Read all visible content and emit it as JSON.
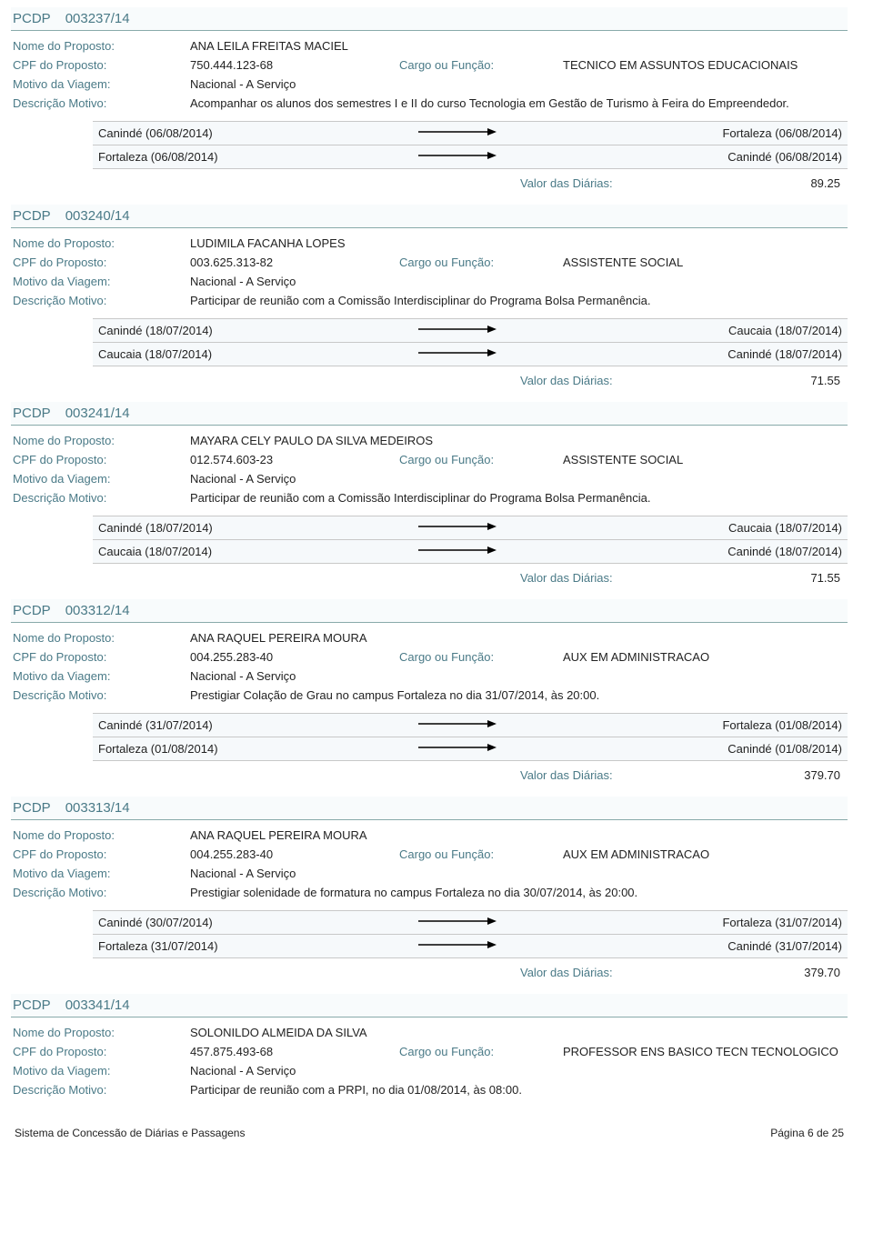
{
  "labels": {
    "pcdp": "PCDP",
    "nome": "Nome do Proposto:",
    "cpf": "CPF do Proposto:",
    "cargo": "Cargo ou Função:",
    "motivo": "Motivo da Viagem:",
    "descricao": "Descrição Motivo:",
    "valor": "Valor das Diárias:"
  },
  "records": [
    {
      "pcdp": "003237/14",
      "nome": "ANA LEILA FREITAS MACIEL",
      "cpf": "750.444.123-68",
      "cargo": "TECNICO EM ASSUNTOS EDUCACIONAIS",
      "motivo": "Nacional - A Serviço",
      "descricao": "Acompanhar os alunos dos semestres I e II do curso Tecnologia em Gestão de Turismo à  Feira do Empreendedor.",
      "trips": [
        {
          "from": "Canindé (06/08/2014)",
          "to": "Fortaleza (06/08/2014)"
        },
        {
          "from": "Fortaleza (06/08/2014)",
          "to": "Canindé (06/08/2014)"
        }
      ],
      "valor": "89.25"
    },
    {
      "pcdp": "003240/14",
      "nome": "LUDIMILA FACANHA LOPES",
      "cpf": "003.625.313-82",
      "cargo": "ASSISTENTE SOCIAL",
      "motivo": "Nacional - A Serviço",
      "descricao": "Participar de reunião com a Comissão Interdisciplinar do Programa Bolsa Permanência.",
      "trips": [
        {
          "from": "Canindé (18/07/2014)",
          "to": "Caucaia (18/07/2014)"
        },
        {
          "from": "Caucaia (18/07/2014)",
          "to": "Canindé (18/07/2014)"
        }
      ],
      "valor": "71.55"
    },
    {
      "pcdp": "003241/14",
      "nome": "MAYARA CELY PAULO DA SILVA MEDEIROS",
      "cpf": "012.574.603-23",
      "cargo": "ASSISTENTE SOCIAL",
      "motivo": "Nacional - A Serviço",
      "descricao": "Participar de reunião com a Comissão Interdisciplinar do Programa Bolsa Permanência.",
      "trips": [
        {
          "from": "Canindé (18/07/2014)",
          "to": "Caucaia (18/07/2014)"
        },
        {
          "from": "Caucaia (18/07/2014)",
          "to": "Canindé (18/07/2014)"
        }
      ],
      "valor": "71.55"
    },
    {
      "pcdp": "003312/14",
      "nome": "ANA RAQUEL PEREIRA MOURA",
      "cpf": "004.255.283-40",
      "cargo": "AUX EM ADMINISTRACAO",
      "motivo": "Nacional - A Serviço",
      "descricao": "Prestigiar Colação de Grau no campus Fortaleza no dia 31/07/2014, às 20:00.",
      "trips": [
        {
          "from": "Canindé (31/07/2014)",
          "to": "Fortaleza (01/08/2014)"
        },
        {
          "from": "Fortaleza (01/08/2014)",
          "to": "Canindé (01/08/2014)"
        }
      ],
      "valor": "379.70"
    },
    {
      "pcdp": "003313/14",
      "nome": "ANA RAQUEL PEREIRA MOURA",
      "cpf": "004.255.283-40",
      "cargo": "AUX EM ADMINISTRACAO",
      "motivo": "Nacional - A Serviço",
      "descricao": "Prestigiar solenidade de formatura no campus Fortaleza no dia 30/07/2014, às 20:00.",
      "trips": [
        {
          "from": "Canindé (30/07/2014)",
          "to": "Fortaleza (31/07/2014)"
        },
        {
          "from": "Fortaleza (31/07/2014)",
          "to": "Canindé (31/07/2014)"
        }
      ],
      "valor": "379.70"
    },
    {
      "pcdp": "003341/14",
      "nome": "SOLONILDO ALMEIDA DA SILVA",
      "cpf": "457.875.493-68",
      "cargo": "PROFESSOR ENS BASICO TECN TECNOLOGICO",
      "motivo": "Nacional - A Serviço",
      "descricao": "Participar de reunião com a PRPI, no dia 01/08/2014, às 08:00.",
      "trips": [],
      "valor": null
    }
  ],
  "footer": {
    "system": "Sistema de Concessão de Diárias e Passagens",
    "page": "Página 6 de  25"
  }
}
